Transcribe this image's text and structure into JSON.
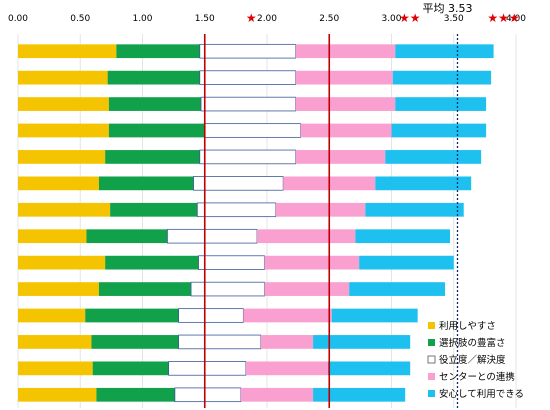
{
  "chart_data": {
    "type": "bar",
    "orientation": "horizontal",
    "stacked": true,
    "xlim": [
      0,
      4
    ],
    "x_ticks": [
      "0.00",
      "0.50",
      "1.00",
      "1.50",
      "2.00",
      "2.50",
      "3.00",
      "3.50",
      "4.00"
    ],
    "reference_lines": [
      {
        "value": 1.5,
        "color": "#c00000",
        "style": "solid"
      },
      {
        "value": 2.5,
        "color": "#c00000",
        "style": "solid"
      },
      {
        "value": 3.53,
        "color": "#0a2a7a",
        "style": "dotted",
        "label": "平均 3.53"
      }
    ],
    "star_markers": [
      {
        "value": 1.83,
        "text": "★"
      },
      {
        "value": 3.06,
        "text": "★★"
      },
      {
        "value": 3.77,
        "text": "★★★"
      }
    ],
    "legend_position": "bottom-right",
    "series": [
      {
        "name": "利用しやすさ",
        "color": "#f5c400",
        "values": [
          0.79,
          0.72,
          0.73,
          0.73,
          0.7,
          0.65,
          0.74,
          0.55,
          0.7,
          0.65,
          0.54,
          0.59,
          0.6,
          0.63
        ]
      },
      {
        "name": "選択肢の豊富さ",
        "color": "#11a14b",
        "values": [
          0.67,
          0.74,
          0.74,
          0.77,
          0.76,
          0.76,
          0.7,
          0.65,
          0.75,
          0.74,
          0.75,
          0.7,
          0.61,
          0.63
        ]
      },
      {
        "name": "役立度／解決度",
        "color": "#ffffff",
        "values": [
          0.77,
          0.77,
          0.76,
          0.77,
          0.77,
          0.72,
          0.63,
          0.72,
          0.53,
          0.59,
          0.52,
          0.66,
          0.62,
          0.53
        ]
      },
      {
        "name": "センターとの連携",
        "color": "#f9a0d0",
        "values": [
          0.8,
          0.78,
          0.8,
          0.73,
          0.72,
          0.74,
          0.72,
          0.79,
          0.76,
          0.68,
          0.71,
          0.42,
          0.66,
          0.58
        ]
      },
      {
        "name": "安心して利用できる",
        "color": "#1ec0ef",
        "values": [
          0.79,
          0.79,
          0.73,
          0.76,
          0.77,
          0.77,
          0.79,
          0.76,
          0.76,
          0.77,
          0.69,
          0.78,
          0.66,
          0.74
        ]
      }
    ]
  }
}
